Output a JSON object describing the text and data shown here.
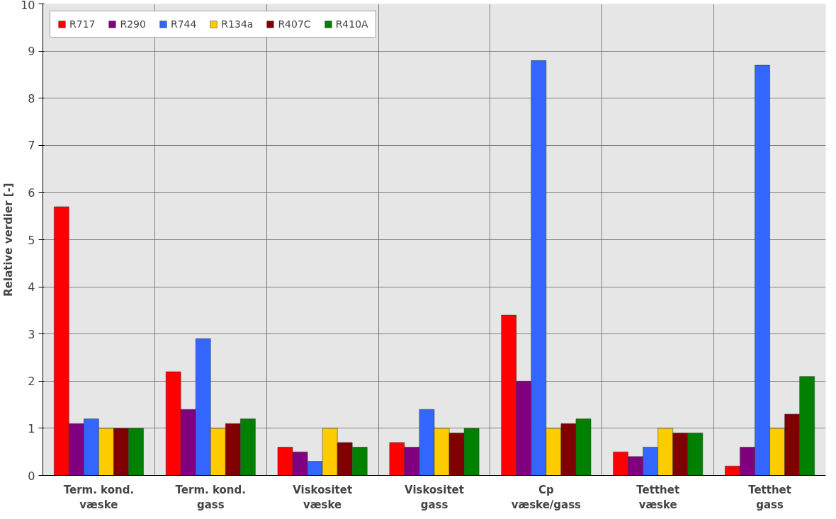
{
  "chart_data": {
    "type": "bar",
    "ylabel": "Relative verdier [-]",
    "categories": [
      "Term. kond.\nvæske",
      "Term. kond.\ngass",
      "Viskositet\nvæske",
      "Viskositet\ngass",
      "Cp\nvæske/gass",
      "Tetthet\nvæske",
      "Tetthet\ngass"
    ],
    "series": [
      {
        "name": "R717",
        "color": "#ff0000",
        "values": [
          5.7,
          2.2,
          0.6,
          0.7,
          3.4,
          0.5,
          0.2
        ]
      },
      {
        "name": "R290",
        "color": "#800080",
        "values": [
          1.1,
          1.4,
          0.5,
          0.6,
          2.0,
          0.4,
          0.6
        ]
      },
      {
        "name": "R744",
        "color": "#3366ff",
        "values": [
          1.2,
          2.9,
          0.3,
          1.4,
          8.8,
          0.6,
          8.7
        ]
      },
      {
        "name": "R134a",
        "color": "#ffcc00",
        "values": [
          1.0,
          1.0,
          1.0,
          1.0,
          1.0,
          1.0,
          1.0
        ]
      },
      {
        "name": "R407C",
        "color": "#800000",
        "values": [
          1.0,
          1.1,
          0.7,
          0.9,
          1.1,
          0.9,
          1.3
        ]
      },
      {
        "name": "R410A",
        "color": "#008000",
        "values": [
          1.0,
          1.2,
          0.6,
          1.0,
          1.2,
          0.9,
          2.1
        ]
      }
    ],
    "ylim": [
      0,
      10
    ],
    "yticks": [
      0,
      1,
      2,
      3,
      4,
      5,
      6,
      7,
      8,
      9,
      10
    ],
    "grid": true,
    "legend": "top left"
  }
}
